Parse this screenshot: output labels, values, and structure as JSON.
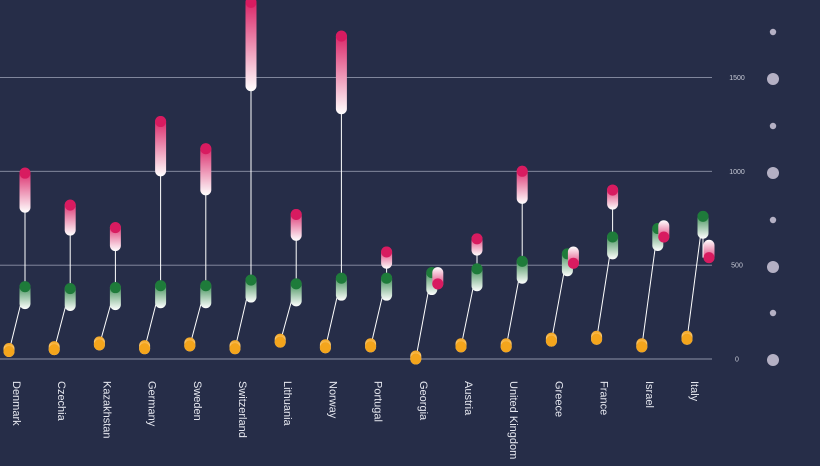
{
  "chart_data": {
    "type": "scatter",
    "xlabel": "",
    "ylabel": "",
    "ylim": [
      0,
      1900
    ],
    "yticks": [
      0,
      500,
      1000,
      1500
    ],
    "grid": true,
    "colors": {
      "background": "#262d48",
      "grid": "#8e93a8",
      "orange": "#f4a51c",
      "green": "#1e7b3a",
      "pink": "#d81b60",
      "stem": "#ffffff",
      "legend_dot": "#b4b0c4"
    },
    "categories": [
      "Denmark",
      "Czechia",
      "Kazakhstan",
      "Germany",
      "Sweden",
      "Switzerland",
      "Lithuania",
      "Norway",
      "Portugal",
      "Georgia",
      "Austria",
      "United Kingdom",
      "Greece",
      "France",
      "Israel",
      "Italy"
    ],
    "series": [
      {
        "values": [
          40,
          50,
          75,
          55,
          70,
          55,
          90,
          60,
          65,
          0,
          65,
          65,
          95,
          105,
          65,
          105
        ]
      },
      {
        "values": [
          385,
          375,
          380,
          390,
          390,
          420,
          400,
          430,
          430,
          460,
          480,
          520,
          560,
          650,
          695,
          760
        ]
      },
      {
        "values": [
          990,
          820,
          700,
          1265,
          1120,
          1900,
          770,
          1720,
          570,
          400,
          640,
          1000,
          510,
          900,
          650,
          540
        ]
      }
    ]
  }
}
